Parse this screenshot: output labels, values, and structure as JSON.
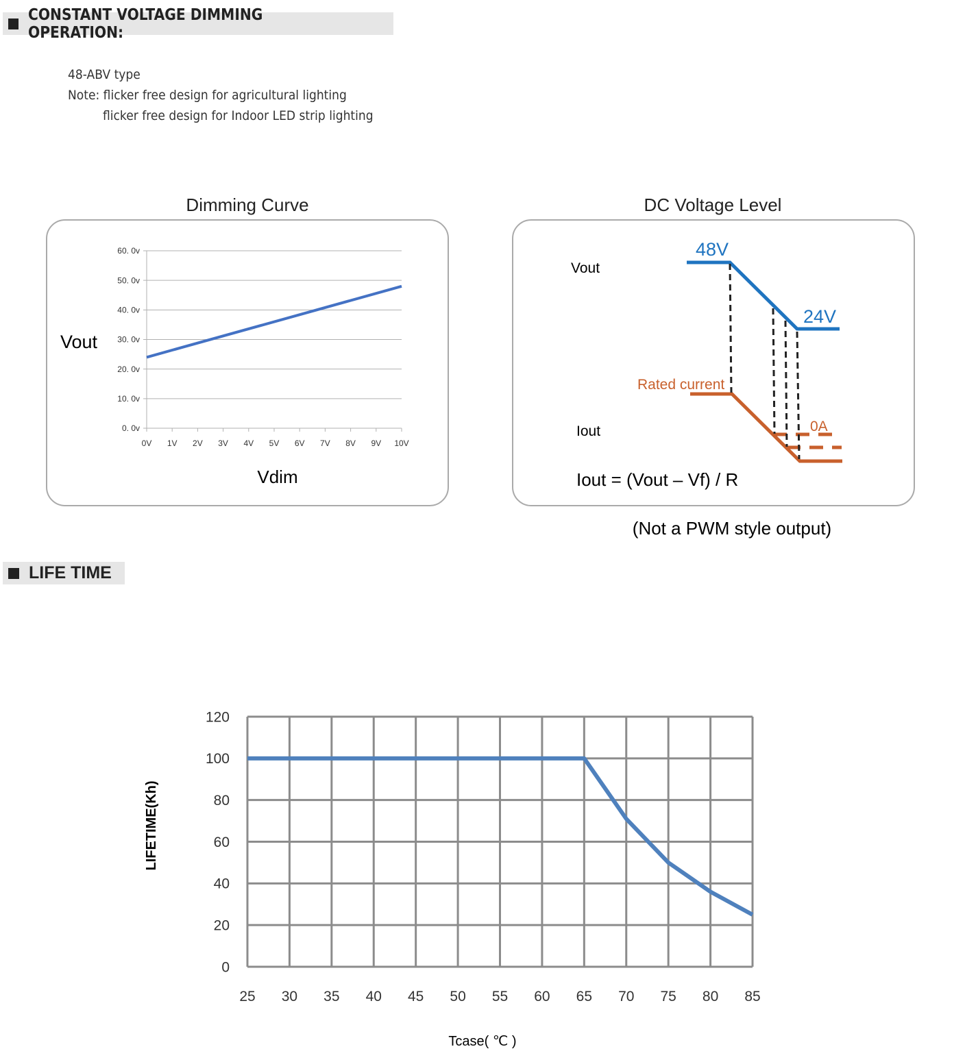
{
  "sections": {
    "dimming": "CONSTANT VOLTAGE DIMMING OPERATION:",
    "lifetime": "LIFE TIME"
  },
  "notes": {
    "type": "48-ABV type",
    "line1": "Note: flicker free design for agricultural lighting",
    "line2": "flicker free design for Indoor LED strip lighting"
  },
  "dc_level": {
    "title": "DC Voltage Level",
    "vout_label": "Vout",
    "iout_label": "Iout",
    "v_high": "48V",
    "v_low": "24V",
    "rated_current": "Rated current",
    "zero_amp": "0A",
    "formula": "Iout = (Vout – Vf) / R",
    "caption": "(Not a PWM style output)",
    "colors": {
      "voltage": "#1f74c0",
      "current": "#c8602c"
    }
  },
  "chart_data": [
    {
      "type": "line",
      "title": "Dimming Curve",
      "xlabel": "Vdim",
      "ylabel": "Vout",
      "x": [
        0,
        10
      ],
      "values": [
        24,
        48
      ],
      "xticks": [
        "0V",
        "1V",
        "2V",
        "3V",
        "4V",
        "5V",
        "6V",
        "7V",
        "8V",
        "9V",
        "10V"
      ],
      "yticks": [
        "0. 0v",
        "10. 0v",
        "20. 0v",
        "30. 0v",
        "40. 0v",
        "50. 0v",
        "60. 0v"
      ],
      "xlim": [
        0,
        10
      ],
      "ylim": [
        0,
        60
      ],
      "grid": true,
      "color": "#4472c4"
    },
    {
      "type": "line",
      "title": "",
      "xlabel": "Tcase( ℃ )",
      "ylabel": "LIFETIME(Kh)",
      "x": [
        25,
        65,
        70,
        75,
        80,
        85
      ],
      "values": [
        100,
        100,
        71,
        50,
        36,
        25
      ],
      "xticks": [
        "25",
        "30",
        "35",
        "40",
        "45",
        "50",
        "55",
        "60",
        "65",
        "70",
        "75",
        "80",
        "85"
      ],
      "yticks": [
        "0",
        "20",
        "40",
        "60",
        "80",
        "100",
        "120"
      ],
      "xlim": [
        25,
        85
      ],
      "ylim": [
        0,
        120
      ],
      "grid": true,
      "color": "#4f81bd"
    }
  ]
}
